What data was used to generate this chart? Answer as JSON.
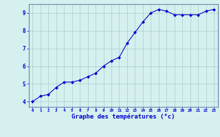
{
  "x": [
    0,
    1,
    2,
    3,
    4,
    5,
    6,
    7,
    8,
    9,
    10,
    11,
    12,
    13,
    14,
    15,
    16,
    17,
    18,
    19,
    20,
    21,
    22,
    23
  ],
  "y": [
    4.0,
    4.3,
    4.4,
    4.8,
    5.1,
    5.1,
    5.2,
    5.4,
    5.6,
    6.0,
    6.3,
    6.5,
    7.3,
    7.9,
    8.5,
    9.0,
    9.2,
    9.1,
    8.9,
    8.9,
    8.9,
    8.9,
    9.1,
    9.2
  ],
  "line_color": "#0000cc",
  "marker": "D",
  "marker_size": 2.0,
  "linewidth": 0.8,
  "xlabel": "Graphe des températures (°c)",
  "xlabel_fontsize": 6.5,
  "ylabel_ticks": [
    4,
    5,
    6,
    7,
    8,
    9
  ],
  "xlim": [
    -0.5,
    23.5
  ],
  "ylim": [
    3.7,
    9.5
  ],
  "xtick_labels": [
    "0",
    "1",
    "2",
    "3",
    "4",
    "5",
    "6",
    "7",
    "8",
    "9",
    "10",
    "11",
    "12",
    "13",
    "14",
    "15",
    "16",
    "17",
    "18",
    "19",
    "20",
    "21",
    "22",
    "23"
  ],
  "background_color": "#d6efef",
  "grid_color": "#aacccc",
  "tick_color": "#0000cc",
  "label_color": "#0000cc",
  "spine_color": "#6688aa"
}
